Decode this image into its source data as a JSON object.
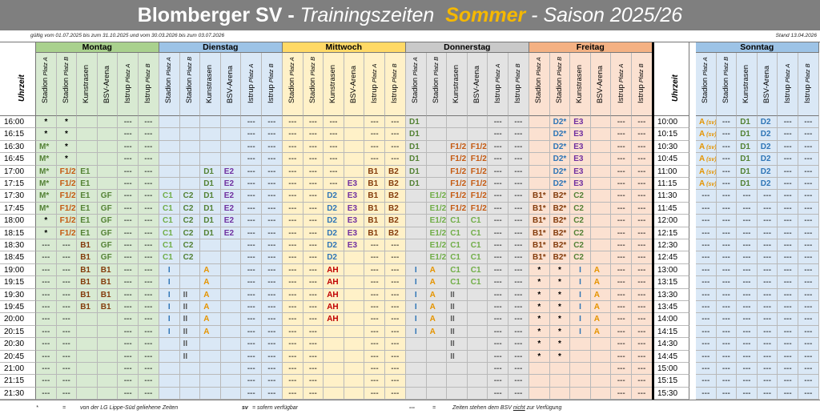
{
  "title": {
    "club": "Blomberger SV",
    "dash1": " - ",
    "trainingszeiten": "Trainingszeiten",
    "season_name": "Sommer",
    "dash2": " - ",
    "saison": "Saison 2025/26"
  },
  "validity": "gültig vom 01.07.2025 bis zum 31.10.2025 und vom 30.03.2026 bis zum 03.07.2026",
  "stand": "Stand 13.04.2026",
  "time_label": "Uhrzeit",
  "facilities": [
    {
      "name": "Stadion",
      "sub": "Platz A"
    },
    {
      "name": "Stadion",
      "sub": "Platz B"
    },
    {
      "name": "Kunstrasen",
      "sub": ""
    },
    {
      "name": "BSV-Arena",
      "sub": ""
    },
    {
      "name": "Istrup",
      "sub": "Platz A"
    },
    {
      "name": "Istrup",
      "sub": "Platz B"
    }
  ],
  "colors": {
    "Montag": "#d8ead2",
    "Dienstag": "#dae8f6",
    "Mittwoch": "#fff1c8",
    "Donnerstag": "#e3e3e3",
    "Freitag": "#fbe1d1",
    "Sonntag": "#dae8f6"
  },
  "header_colors": {
    "Montag": "#a9d18e",
    "Dienstag": "#9dc3e6",
    "Mittwoch": "#ffd966",
    "Donnerstag": "#c9c9c9",
    "Freitag": "#f4b183",
    "Sonntag": "#9dc3e6"
  },
  "code_colors": {
    "M": "#538135",
    "E1": "#548235",
    "E1/2": "#70ad47",
    "C1": "#70ad47",
    "C2": "#538135",
    "GF": "#548235",
    "F1/2": "#c55a11",
    "B1": "#843c0c",
    "B2": "#843c0c",
    "D1": "#548235",
    "D2": "#2e75b6",
    "E2": "#7030a0",
    "E3": "#7030a0",
    "I": "#2e75b6",
    "II": "#595959",
    "A": "#e59400",
    "AH": "#c00000",
    "*": "#000000",
    "---": "#000000",
    "sv": "#e59400"
  },
  "times_left": [
    "16:00",
    "16:15",
    "16:30",
    "16:45",
    "17:00",
    "17:15",
    "17:30",
    "17:45",
    "18:00",
    "18:15",
    "18:30",
    "18:45",
    "19:00",
    "19:15",
    "19:30",
    "19:45",
    "20:00",
    "20:15",
    "20:30",
    "20:45",
    "21:00",
    "21:15",
    "21:30"
  ],
  "times_sunday": [
    "10:00",
    "10:15",
    "10:30",
    "10:45",
    "11:00",
    "11:15",
    "11:30",
    "11:45",
    "12:00",
    "12:15",
    "12:30",
    "12:45",
    "13:00",
    "13:15",
    "13:30",
    "13:45",
    "14:00",
    "14:15",
    "14:30",
    "14:45",
    "15:00",
    "15:15",
    "15:30"
  ],
  "days": [
    {
      "name": "Montag",
      "rows": [
        [
          "*",
          "*",
          "",
          "",
          "---",
          "---"
        ],
        [
          "*",
          "*",
          "",
          "",
          "---",
          "---"
        ],
        [
          "M*",
          "*",
          "",
          "",
          "---",
          "---"
        ],
        [
          "M*",
          "*",
          "",
          "",
          "---",
          "---"
        ],
        [
          "M*",
          "F1/2*",
          "E1",
          "",
          "---",
          "---"
        ],
        [
          "M*",
          "F1/2*",
          "E1",
          "",
          "---",
          "---"
        ],
        [
          "M*",
          "F1/2*",
          "E1",
          "GF",
          "---",
          "---"
        ],
        [
          "M*",
          "F1/2*",
          "E1",
          "GF",
          "---",
          "---"
        ],
        [
          "*",
          "F1/2*",
          "E1",
          "GF",
          "---",
          "---"
        ],
        [
          "*",
          "F1/2*",
          "E1",
          "GF",
          "---",
          "---"
        ],
        [
          "---",
          "---",
          "B1",
          "GF",
          "---",
          "---"
        ],
        [
          "---",
          "---",
          "B1",
          "GF",
          "---",
          "---"
        ],
        [
          "---",
          "---",
          "B1",
          "B1",
          "---",
          "---"
        ],
        [
          "---",
          "---",
          "B1",
          "B1",
          "---",
          "---"
        ],
        [
          "---",
          "---",
          "B1",
          "B1",
          "---",
          "---"
        ],
        [
          "---",
          "---",
          "B1",
          "B1",
          "---",
          "---"
        ],
        [
          "---",
          "---",
          "",
          "",
          "---",
          "---"
        ],
        [
          "---",
          "---",
          "",
          "",
          "---",
          "---"
        ],
        [
          "---",
          "---",
          "",
          "",
          "---",
          "---"
        ],
        [
          "---",
          "---",
          "",
          "",
          "---",
          "---"
        ],
        [
          "---",
          "---",
          "",
          "",
          "---",
          "---"
        ],
        [
          "---",
          "---",
          "",
          "",
          "---",
          "---"
        ],
        [
          "---",
          "---",
          "",
          "",
          "---",
          "---"
        ]
      ]
    },
    {
      "name": "Dienstag",
      "rows": [
        [
          "",
          "",
          "",
          "",
          "---",
          "---"
        ],
        [
          "",
          "",
          "",
          "",
          "---",
          "---"
        ],
        [
          "",
          "",
          "",
          "",
          "---",
          "---"
        ],
        [
          "",
          "",
          "",
          "",
          "---",
          "---"
        ],
        [
          "",
          "",
          "D1",
          "E2",
          "---",
          "---"
        ],
        [
          "",
          "",
          "D1",
          "E2",
          "---",
          "---"
        ],
        [
          "C1",
          "C2",
          "D1",
          "E2",
          "---",
          "---"
        ],
        [
          "C1",
          "C2",
          "D1",
          "E2",
          "---",
          "---"
        ],
        [
          "C1",
          "C2",
          "D1",
          "E2",
          "---",
          "---"
        ],
        [
          "C1",
          "C2",
          "D1",
          "E2",
          "---",
          "---"
        ],
        [
          "C1",
          "C2",
          "",
          "",
          "---",
          "---"
        ],
        [
          "C1",
          "C2",
          "",
          "",
          "---",
          "---"
        ],
        [
          "I",
          "",
          "A",
          "",
          "---",
          "---"
        ],
        [
          "I",
          "",
          "A",
          "",
          "---",
          "---"
        ],
        [
          "I",
          "II",
          "A",
          "",
          "---",
          "---"
        ],
        [
          "I",
          "II",
          "A",
          "",
          "---",
          "---"
        ],
        [
          "I",
          "II",
          "A",
          "",
          "---",
          "---"
        ],
        [
          "I",
          "II",
          "A",
          "",
          "---",
          "---"
        ],
        [
          "",
          "II",
          "",
          "",
          "---",
          "---"
        ],
        [
          "",
          "II",
          "",
          "",
          "---",
          "---"
        ],
        [
          "",
          "",
          "",
          "",
          "---",
          "---"
        ],
        [
          "",
          "",
          "",
          "",
          "---",
          "---"
        ],
        [
          "",
          "",
          "",
          "",
          "---",
          "---"
        ]
      ]
    },
    {
      "name": "Mittwoch",
      "rows": [
        [
          "---",
          "---",
          "---",
          "",
          "---",
          "---"
        ],
        [
          "---",
          "---",
          "---",
          "",
          "---",
          "---"
        ],
        [
          "---",
          "---",
          "---",
          "",
          "---",
          "---"
        ],
        [
          "---",
          "---",
          "---",
          "",
          "---",
          "---"
        ],
        [
          "---",
          "---",
          "---",
          "",
          "B1",
          "B2"
        ],
        [
          "---",
          "---",
          "---",
          "E3",
          "B1",
          "B2"
        ],
        [
          "---",
          "---",
          "D2",
          "E3",
          "B1",
          "B2"
        ],
        [
          "---",
          "---",
          "D2",
          "E3",
          "B1",
          "B2"
        ],
        [
          "---",
          "---",
          "D2",
          "E3",
          "B1",
          "B2"
        ],
        [
          "---",
          "---",
          "D2",
          "E3",
          "B1",
          "B2"
        ],
        [
          "---",
          "---",
          "D2",
          "E3",
          "---",
          "---"
        ],
        [
          "---",
          "---",
          "D2",
          "",
          "---",
          "---"
        ],
        [
          "---",
          "---",
          "AH",
          "",
          "---",
          "---"
        ],
        [
          "---",
          "---",
          "AH",
          "",
          "---",
          "---"
        ],
        [
          "---",
          "---",
          "AH",
          "",
          "---",
          "---"
        ],
        [
          "---",
          "---",
          "AH",
          "",
          "---",
          "---"
        ],
        [
          "---",
          "---",
          "AH",
          "",
          "---",
          "---"
        ],
        [
          "---",
          "---",
          "",
          "",
          "---",
          "---"
        ],
        [
          "---",
          "---",
          "",
          "",
          "---",
          "---"
        ],
        [
          "---",
          "---",
          "",
          "",
          "---",
          "---"
        ],
        [
          "---",
          "---",
          "",
          "",
          "---",
          "---"
        ],
        [
          "---",
          "---",
          "",
          "",
          "---",
          "---"
        ],
        [
          "---",
          "---",
          "",
          "",
          "---",
          "---"
        ]
      ]
    },
    {
      "name": "Donnerstag",
      "rows": [
        [
          "D1",
          "",
          "",
          "",
          "---",
          "---"
        ],
        [
          "D1",
          "",
          "",
          "",
          "---",
          "---"
        ],
        [
          "D1",
          "",
          "F1/2",
          "F1/2",
          "---",
          "---"
        ],
        [
          "D1",
          "",
          "F1/2",
          "F1/2",
          "---",
          "---"
        ],
        [
          "D1",
          "",
          "F1/2",
          "F1/2",
          "---",
          "---"
        ],
        [
          "D1",
          "",
          "F1/2",
          "F1/2",
          "---",
          "---"
        ],
        [
          "",
          "E1/2",
          "F1/2",
          "F1/2",
          "---",
          "---"
        ],
        [
          "",
          "E1/2",
          "F1/2",
          "F1/2",
          "---",
          "---"
        ],
        [
          "",
          "E1/2",
          "C1",
          "C1",
          "---",
          "---"
        ],
        [
          "",
          "E1/2",
          "C1",
          "C1",
          "---",
          "---"
        ],
        [
          "",
          "E1/2",
          "C1",
          "C1",
          "---",
          "---"
        ],
        [
          "",
          "E1/2",
          "C1",
          "C1",
          "---",
          "---"
        ],
        [
          "I",
          "A",
          "C1",
          "C1",
          "---",
          "---"
        ],
        [
          "I",
          "A",
          "C1",
          "C1",
          "---",
          "---"
        ],
        [
          "I",
          "A",
          "II",
          "",
          "---",
          "---"
        ],
        [
          "I",
          "A",
          "II",
          "",
          "---",
          "---"
        ],
        [
          "I",
          "A",
          "II",
          "",
          "---",
          "---"
        ],
        [
          "I",
          "A",
          "II",
          "",
          "---",
          "---"
        ],
        [
          "",
          "",
          "II",
          "",
          "---",
          "---"
        ],
        [
          "",
          "",
          "II",
          "",
          "---",
          "---"
        ],
        [
          "",
          "",
          "",
          "",
          "---",
          "---"
        ],
        [
          "",
          "",
          "",
          "",
          "---",
          "---"
        ],
        [
          "",
          "",
          "",
          "",
          "---",
          "---"
        ]
      ]
    },
    {
      "name": "Freitag",
      "rows": [
        [
          "",
          "D2*",
          "E3",
          "",
          "---",
          "---"
        ],
        [
          "",
          "D2*",
          "E3",
          "",
          "---",
          "---"
        ],
        [
          "",
          "D2*",
          "E3",
          "",
          "---",
          "---"
        ],
        [
          "",
          "D2*",
          "E3",
          "",
          "---",
          "---"
        ],
        [
          "",
          "D2*",
          "E3",
          "",
          "---",
          "---"
        ],
        [
          "",
          "D2*",
          "E3",
          "",
          "---",
          "---"
        ],
        [
          "B1*",
          "B2*",
          "C2",
          "",
          "---",
          "---"
        ],
        [
          "B1*",
          "B2*",
          "C2",
          "",
          "---",
          "---"
        ],
        [
          "B1*",
          "B2*",
          "C2",
          "",
          "---",
          "---"
        ],
        [
          "B1*",
          "B2*",
          "C2",
          "",
          "---",
          "---"
        ],
        [
          "B1*",
          "B2*",
          "C2",
          "",
          "---",
          "---"
        ],
        [
          "B1*",
          "B2*",
          "C2",
          "",
          "---",
          "---"
        ],
        [
          "*",
          "*",
          "I",
          "A",
          "---",
          "---"
        ],
        [
          "*",
          "*",
          "I",
          "A",
          "---",
          "---"
        ],
        [
          "*",
          "*",
          "I",
          "A",
          "---",
          "---"
        ],
        [
          "*",
          "*",
          "I",
          "A",
          "---",
          "---"
        ],
        [
          "*",
          "*",
          "I",
          "A",
          "---",
          "---"
        ],
        [
          "*",
          "*",
          "I",
          "A",
          "---",
          "---"
        ],
        [
          "*",
          "*",
          "",
          "",
          "---",
          "---"
        ],
        [
          "*",
          "*",
          "",
          "",
          "---",
          "---"
        ],
        [
          "",
          "",
          "",
          "",
          "---",
          "---"
        ],
        [
          "",
          "",
          "",
          "",
          "---",
          "---"
        ],
        [
          "",
          "",
          "",
          "",
          "---",
          "---"
        ]
      ]
    },
    {
      "name": "Sonntag",
      "rows": [
        [
          "A (sv)",
          "---",
          "D1",
          "D2",
          "---",
          "---"
        ],
        [
          "A (sv)",
          "---",
          "D1",
          "D2",
          "---",
          "---"
        ],
        [
          "A (sv)",
          "---",
          "D1",
          "D2",
          "---",
          "---"
        ],
        [
          "A (sv)",
          "---",
          "D1",
          "D2",
          "---",
          "---"
        ],
        [
          "A (sv)",
          "---",
          "D1",
          "D2",
          "---",
          "---"
        ],
        [
          "A (sv)",
          "---",
          "D1",
          "D2",
          "---",
          "---"
        ],
        [
          "---",
          "---",
          "---",
          "---",
          "---",
          "---"
        ],
        [
          "---",
          "---",
          "---",
          "---",
          "---",
          "---"
        ],
        [
          "---",
          "---",
          "---",
          "---",
          "---",
          "---"
        ],
        [
          "---",
          "---",
          "---",
          "---",
          "---",
          "---"
        ],
        [
          "---",
          "---",
          "---",
          "---",
          "---",
          "---"
        ],
        [
          "---",
          "---",
          "---",
          "---",
          "---",
          "---"
        ],
        [
          "---",
          "---",
          "---",
          "---",
          "---",
          "---"
        ],
        [
          "---",
          "---",
          "---",
          "---",
          "---",
          "---"
        ],
        [
          "---",
          "---",
          "---",
          "---",
          "---",
          "---"
        ],
        [
          "---",
          "---",
          "---",
          "---",
          "---",
          "---"
        ],
        [
          "---",
          "---",
          "---",
          "---",
          "---",
          "---"
        ],
        [
          "---",
          "---",
          "---",
          "---",
          "---",
          "---"
        ],
        [
          "---",
          "---",
          "---",
          "---",
          "---",
          "---"
        ],
        [
          "---",
          "---",
          "---",
          "---",
          "---",
          "---"
        ],
        [
          "---",
          "---",
          "---",
          "---",
          "---",
          "---"
        ],
        [
          "---",
          "---",
          "---",
          "---",
          "---",
          "---"
        ],
        [
          "---",
          "---",
          "---",
          "---",
          "---",
          "---"
        ]
      ]
    }
  ],
  "legend": {
    "star_symbol": "*",
    "eq1": "=",
    "star_text": "von der LG Lippe-Süd geliehene Zeiten",
    "sv_symbol": "sv",
    "sv_text": "= sofern verfügbar",
    "dash_symbol": "---",
    "eq2": "=",
    "dash_text_a": "Zeiten stehen dem BSV ",
    "dash_text_nicht": "nicht",
    "dash_text_b": " zur Verfügung"
  }
}
